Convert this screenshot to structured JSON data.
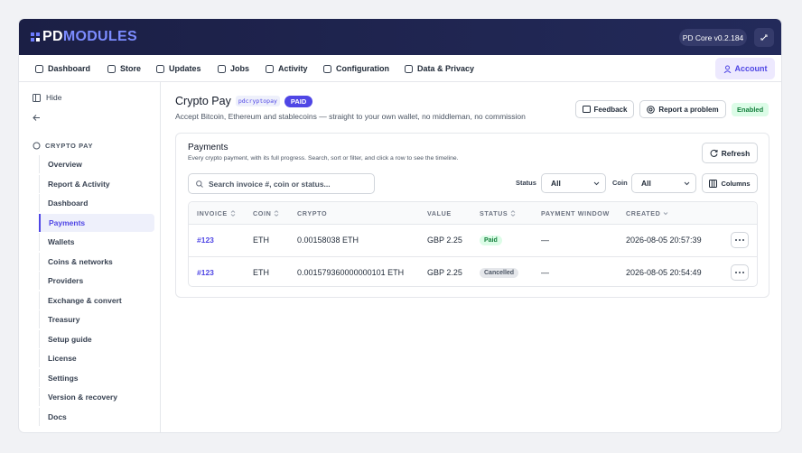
{
  "header": {
    "logo_prefix": "PD",
    "logo_suffix": "MODULES",
    "version": "PD Core v0.2.184"
  },
  "nav": {
    "items": [
      "Dashboard",
      "Store",
      "Updates",
      "Jobs",
      "Activity",
      "Configuration",
      "Data & Privacy"
    ],
    "account": "Account"
  },
  "sidebar": {
    "hide": "Hide",
    "section": "CRYPTO PAY",
    "items": [
      "Overview",
      "Report & Activity",
      "Dashboard",
      "Payments",
      "Wallets",
      "Coins & networks",
      "Providers",
      "Exchange & convert",
      "Treasury",
      "Setup guide",
      "License",
      "Settings",
      "Version & recovery",
      "Docs"
    ],
    "active": 3
  },
  "page": {
    "title": "Crypto Pay",
    "slug": "pdcryptopay",
    "badge": "PAID",
    "subtitle": "Accept Bitcoin, Ethereum and stablecoins — straight to your own wallet, no middleman, no commission",
    "buttons": [
      "Feedback",
      "Report a problem"
    ],
    "status": "Enabled"
  },
  "payments": {
    "title": "Payments",
    "description": "Every crypto payment, with its full progress. Search, sort or filter, and click a row to see the timeline.",
    "refresh": "Refresh",
    "search_placeholder": "Search invoice #, coin or status...",
    "status_label": "Status",
    "status_value": "All",
    "coin_label": "Coin",
    "coin_value": "All",
    "columns_button": "Columns",
    "table": {
      "columns": [
        "INVOICE",
        "COIN",
        "CRYPTO",
        "VALUE",
        "STATUS",
        "PAYMENT WINDOW",
        "CREATED"
      ],
      "rows": [
        [
          "#123",
          "ETH",
          "0.00158038 ETH",
          "GBP 2.25",
          "Paid",
          "—",
          "2026-08-05 20:57:39"
        ],
        [
          "#123",
          "ETH",
          "0.001579360000000101 ETH",
          "GBP 2.25",
          "Cancelled",
          "—",
          "2026-08-05 20:54:49"
        ]
      ]
    }
  }
}
